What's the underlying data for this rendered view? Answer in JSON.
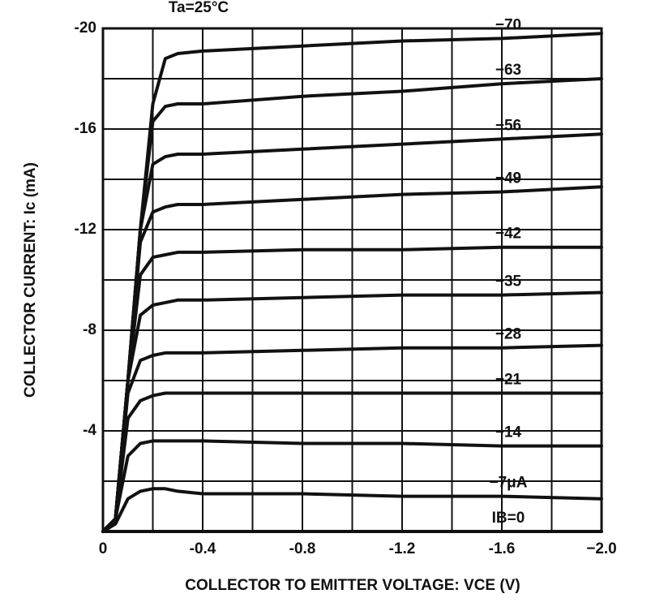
{
  "chart_data": {
    "type": "line",
    "annotation": "Ta=25°C",
    "xlabel": "COLLECTOR TO EMITTER VOLTAGE: VCE (V)",
    "ylabel": "COLLECTOR CURRENT: Ic (mA)",
    "xlim": [
      0,
      -2
    ],
    "ylim": [
      0,
      -20
    ],
    "xticks": [
      0,
      -0.4,
      -0.8,
      -1.2,
      -1.6,
      {
        "value": -2,
        "label": "−2.0"
      }
    ],
    "yticks": [
      -4,
      -8,
      -12,
      -16,
      -20
    ],
    "grid": true,
    "grid_subdivisions": 2,
    "color": "#111111",
    "x": [
      0,
      -0.05,
      -0.1,
      -0.15,
      -0.2,
      -0.25,
      -0.3,
      -0.4,
      -0.8,
      -1.2,
      -1.6,
      -2.0
    ],
    "series": [
      {
        "name": "−70",
        "values": [
          0,
          -0.5,
          -6,
          -12,
          -17,
          -18.8,
          -19.0,
          -19.1,
          -19.3,
          -19.5,
          -19.6,
          -19.8
        ]
      },
      {
        "name": "−63",
        "values": [
          0,
          -0.5,
          -6,
          -12,
          -16.3,
          -16.9,
          -17.0,
          -17.0,
          -17.3,
          -17.5,
          -17.8,
          -18.0
        ]
      },
      {
        "name": "−56",
        "values": [
          0,
          -0.5,
          -6,
          -12,
          -14.6,
          -14.9,
          -15.0,
          -15.0,
          -15.2,
          -15.4,
          -15.6,
          -15.8
        ]
      },
      {
        "name": "−49",
        "values": [
          0,
          -0.5,
          -6,
          -11.5,
          -12.7,
          -12.9,
          -13.0,
          -13.0,
          -13.2,
          -13.4,
          -13.5,
          -13.7
        ]
      },
      {
        "name": "−42",
        "values": [
          0,
          -0.5,
          -6,
          -10.2,
          -10.9,
          -11.0,
          -11.1,
          -11.1,
          -11.2,
          -11.2,
          -11.3,
          -11.3
        ]
      },
      {
        "name": "−35",
        "values": [
          0,
          -0.5,
          -6,
          -8.6,
          -9.0,
          -9.1,
          -9.2,
          -9.2,
          -9.3,
          -9.4,
          -9.4,
          -9.5
        ]
      },
      {
        "name": "−28",
        "values": [
          0,
          -0.5,
          -5.5,
          -6.8,
          -7.0,
          -7.1,
          -7.1,
          -7.1,
          -7.2,
          -7.3,
          -7.3,
          -7.4
        ]
      },
      {
        "name": "−21",
        "values": [
          0,
          -0.5,
          -4.5,
          -5.2,
          -5.4,
          -5.5,
          -5.5,
          -5.5,
          -5.5,
          -5.5,
          -5.5,
          -5.5
        ]
      },
      {
        "name": "−14",
        "values": [
          0,
          -0.5,
          -3.0,
          -3.5,
          -3.6,
          -3.6,
          -3.6,
          -3.6,
          -3.5,
          -3.5,
          -3.4,
          -3.4
        ]
      },
      {
        "name": "−7μA",
        "values": [
          0,
          -0.3,
          -1.3,
          -1.6,
          -1.7,
          -1.7,
          -1.6,
          -1.5,
          -1.5,
          -1.4,
          -1.4,
          -1.3
        ]
      },
      {
        "name": "IB=0",
        "values": [
          0,
          0,
          0,
          0,
          0,
          0,
          0,
          0,
          0,
          0,
          0,
          0
        ]
      }
    ]
  }
}
